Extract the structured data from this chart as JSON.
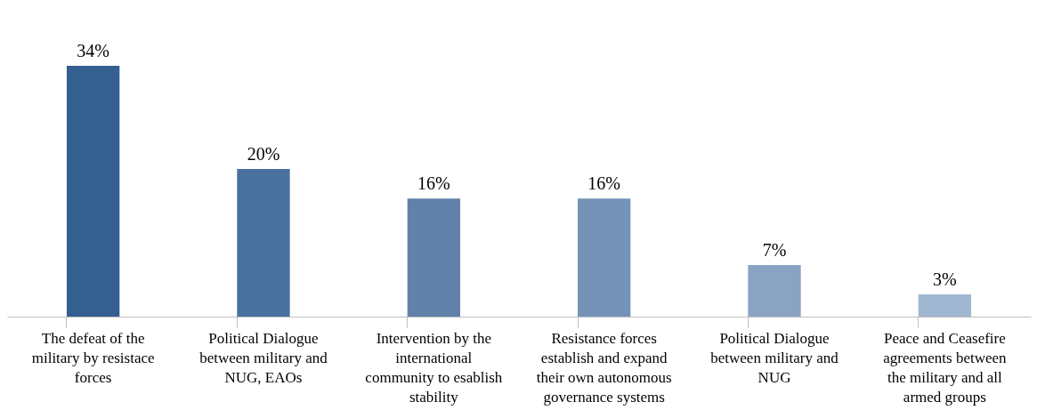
{
  "chart_data": {
    "type": "bar",
    "categories": [
      "The defeat of the military by resistace forces",
      "Political Dialogue between military and NUG, EAOs",
      "Intervention by the international community to esablish stability",
      "Resistance forces establish and expand their own autonomous governance systems",
      "Political Dialogue between military and NUG",
      "Peace and Ceasefire agreements between the military and all armed groups"
    ],
    "values": [
      34,
      20,
      16,
      16,
      7,
      3
    ],
    "colors": [
      "#345f91",
      "#4a709f",
      "#6181a9",
      "#7593b6",
      "#8ba3c3",
      "#a1b6d1"
    ],
    "value_labels": [
      "34%",
      "20%",
      "16%",
      "16%",
      "7%",
      "3%"
    ]
  }
}
